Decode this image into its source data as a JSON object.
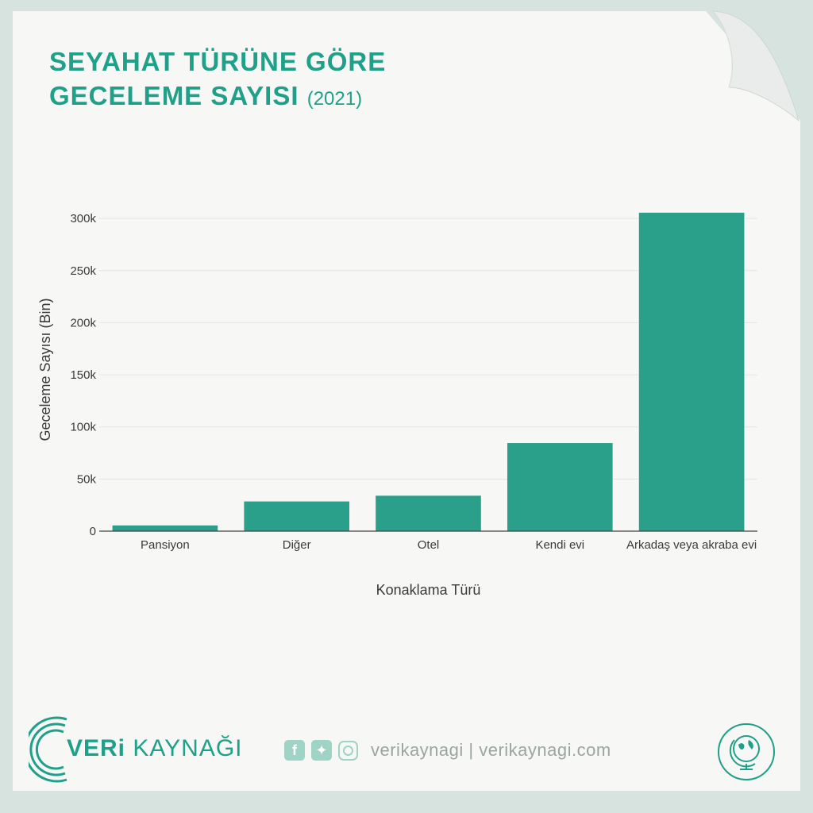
{
  "header": {
    "title_line1": "SEYAHAT TÜRÜNE GÖRE",
    "title_line2": "GECELEME SAYISI",
    "year": "(2021)"
  },
  "colors": {
    "accent": "#1fa089",
    "bar": "#2aa08a",
    "background": "#d6e3df",
    "paper": "#f7f7f6"
  },
  "chart_data": {
    "type": "bar",
    "categories": [
      "Pansiyon",
      "Diğer",
      "Otel",
      "Kendi evi",
      "Arkadaş veya akraba evi"
    ],
    "values": [
      5500,
      28500,
      34000,
      84500,
      305500
    ],
    "xlabel": "Konaklama Türü",
    "ylabel": "Geceleme Sayısı (Bin)",
    "ylim": [
      0,
      310000
    ],
    "yticks": [
      0,
      50000,
      100000,
      150000,
      200000,
      250000,
      300000
    ],
    "ytick_labels": [
      "0",
      "50k",
      "100k",
      "150k",
      "200k",
      "250k",
      "300k"
    ],
    "grid": true,
    "legend": "none"
  },
  "footer": {
    "brand_bold": "VERi",
    "brand_rest": " KAYNAĞI",
    "handle": "verikaynagi | verikaynagi.com",
    "social_icons": [
      "facebook-icon",
      "twitter-icon",
      "instagram-icon"
    ],
    "badge_icon": "globe-icon"
  }
}
